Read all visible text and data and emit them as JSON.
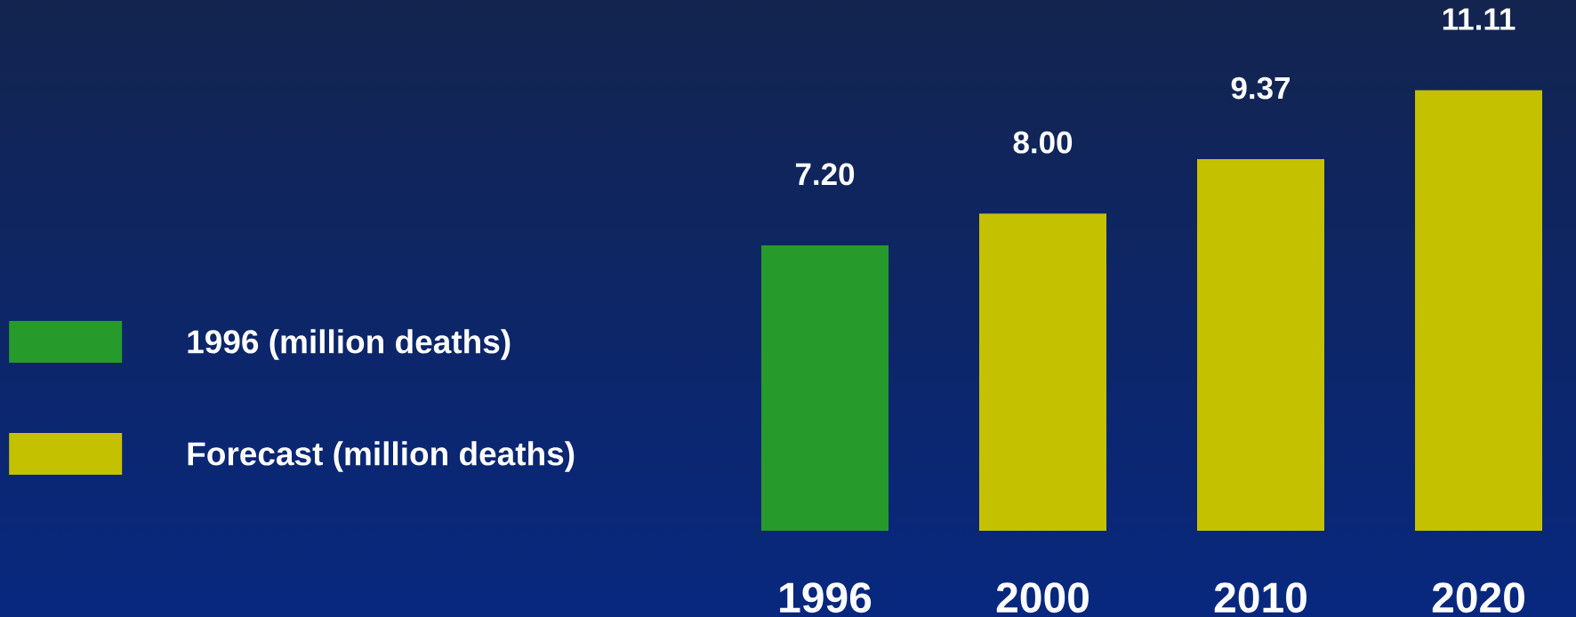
{
  "chart_data": {
    "type": "bar",
    "categories": [
      "1996",
      "2000",
      "2010",
      "2020"
    ],
    "series": [
      {
        "name": "1996 (million deaths)",
        "color": "#279a2c",
        "values": [
          7.2,
          null,
          null,
          null
        ],
        "value_labels": [
          "7.20",
          null,
          null,
          null
        ]
      },
      {
        "name": "Forecast (million deaths)",
        "color": "#c4c200",
        "values": [
          null,
          8.0,
          9.37,
          11.11
        ],
        "value_labels": [
          null,
          "8.00",
          "9.37",
          "11.11"
        ]
      }
    ],
    "legend": "left",
    "tick_labels": "x"
  }
}
